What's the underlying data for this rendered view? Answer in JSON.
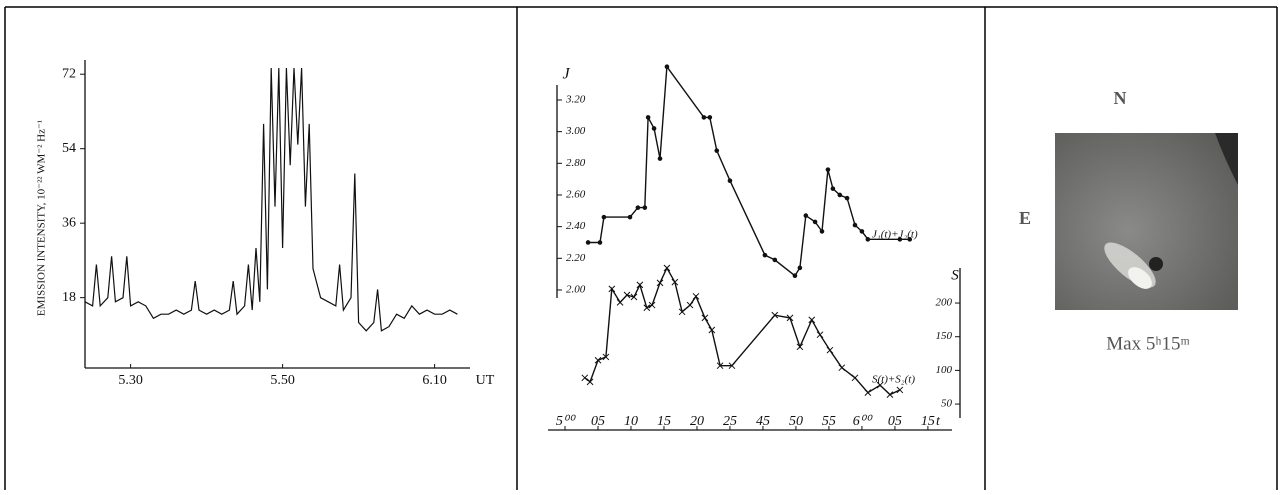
{
  "chart_data": [
    {
      "type": "line",
      "ylabel": "EMISSION INTENSITY, 10⁻²² WM⁻² Hz⁻¹",
      "xlabel": "UT",
      "color": "#111111",
      "xlim": [
        24,
        74
      ],
      "ylim": [
        1,
        73.5
      ],
      "xticks": [
        {
          "value": 30,
          "label": "5.30"
        },
        {
          "value": 50,
          "label": "5.50"
        },
        {
          "value": 70,
          "label": "6.10"
        }
      ],
      "yticks": [
        18,
        36,
        54,
        72
      ],
      "x": [
        24,
        25,
        25.5,
        26,
        27,
        27.5,
        28,
        29,
        29.5,
        30,
        31,
        32,
        33,
        34,
        35,
        36,
        37,
        38,
        38.5,
        39,
        40,
        41,
        42,
        43,
        43.5,
        44,
        45,
        45.5,
        46,
        46.5,
        47,
        47.5,
        48,
        48.5,
        49,
        49.5,
        50,
        50.5,
        51,
        51.5,
        52,
        52.5,
        53,
        53.5,
        54,
        55,
        56,
        57,
        57.5,
        58,
        59,
        59.5,
        60,
        61,
        62,
        62.5,
        63,
        64,
        65,
        66,
        67,
        68,
        69,
        70,
        71,
        72,
        73
      ],
      "values": [
        17,
        16,
        26,
        16,
        18,
        28,
        17,
        18,
        28,
        16,
        17,
        16,
        13,
        14,
        14,
        15,
        14,
        15,
        22,
        15,
        14,
        15,
        14,
        15,
        22,
        14,
        16,
        26,
        15,
        30,
        17,
        60,
        20,
        73.5,
        40,
        73.5,
        30,
        73.5,
        50,
        73.5,
        55,
        73.5,
        40,
        60,
        25,
        18,
        17,
        16,
        26,
        15,
        18,
        48,
        12,
        10,
        12,
        20,
        10,
        11,
        14,
        13,
        16,
        14,
        15,
        14,
        14,
        15,
        14
      ]
    },
    {
      "type": "line",
      "ylabel": "J",
      "y2label": "S",
      "xlabel": "t",
      "xlim": [
        -0.5,
        11.7
      ],
      "ylim": [
        1.95,
        3.45
      ],
      "y2lim": [
        40,
        255
      ],
      "xticks": [
        {
          "value": 0,
          "label": "5⁰⁰"
        },
        {
          "value": 1,
          "label": "05"
        },
        {
          "value": 2,
          "label": "10"
        },
        {
          "value": 3,
          "label": "15"
        },
        {
          "value": 4,
          "label": "20"
        },
        {
          "value": 5,
          "label": "25"
        },
        {
          "value": 6,
          "label": "45"
        },
        {
          "value": 7,
          "label": "50"
        },
        {
          "value": 8,
          "label": "55"
        },
        {
          "value": 9,
          "label": "6⁰⁰"
        },
        {
          "value": 10,
          "label": "05"
        },
        {
          "value": 11,
          "label": "15"
        }
      ],
      "yticks": [
        {
          "value": 2,
          "label": "2.00"
        },
        {
          "value": 2.2,
          "label": "2.20"
        },
        {
          "value": 2.4,
          "label": "2.40"
        },
        {
          "value": 2.6,
          "label": "2.60"
        },
        {
          "value": 2.8,
          "label": "2.80"
        },
        {
          "value": 3,
          "label": "3.00"
        },
        {
          "value": 3.2,
          "label": "3.20"
        }
      ],
      "y2ticks": [
        50,
        100,
        150,
        200
      ],
      "series": [
        {
          "name": "J₁(t)+J₂(t)",
          "color": "#111111",
          "marker": "o",
          "x": [
            0.7,
            1.06,
            1.18,
            1.97,
            2.21,
            2.42,
            2.52,
            2.7,
            2.88,
            3.09,
            4.21,
            4.39,
            4.6,
            5.0,
            6.06,
            6.36,
            6.97,
            7.12,
            7.3,
            7.58,
            7.79,
            7.97,
            8.12,
            8.33,
            8.55,
            8.79,
            9.0,
            9.18,
            10.15,
            10.45
          ],
          "values": [
            2.3,
            2.3,
            2.46,
            2.46,
            2.52,
            2.52,
            3.09,
            3.02,
            2.83,
            3.41,
            3.09,
            3.09,
            2.88,
            2.69,
            2.22,
            2.19,
            2.09,
            2.14,
            2.47,
            2.43,
            2.37,
            2.76,
            2.64,
            2.6,
            2.58,
            2.41,
            2.37,
            2.32,
            2.32,
            2.32
          ]
        },
        {
          "name": "S(t)+S₂(t)",
          "color": "#111111",
          "marker": "x",
          "axis": "y2",
          "x": [
            0.6,
            0.76,
            1.0,
            1.24,
            1.42,
            1.67,
            1.88,
            2.09,
            2.27,
            2.48,
            2.64,
            2.88,
            3.09,
            3.33,
            3.55,
            3.79,
            3.97,
            4.24,
            4.45,
            4.7,
            5.06,
            6.36,
            6.82,
            7.12,
            7.48,
            7.73,
            8.03,
            8.39,
            8.79,
            9.18,
            9.55,
            9.85,
            10.15
          ],
          "values": [
            89,
            83,
            115,
            120,
            221,
            201,
            212,
            209,
            227,
            193,
            197,
            230,
            252,
            231,
            187,
            197,
            210,
            178,
            160,
            107,
            107,
            182,
            178,
            135,
            175,
            153,
            130,
            104,
            89,
            67,
            78,
            64,
            71
          ]
        }
      ]
    }
  ],
  "image_panel": {
    "north": "N",
    "east": "E",
    "caption": "Max 5ʰ15ᵐ"
  }
}
